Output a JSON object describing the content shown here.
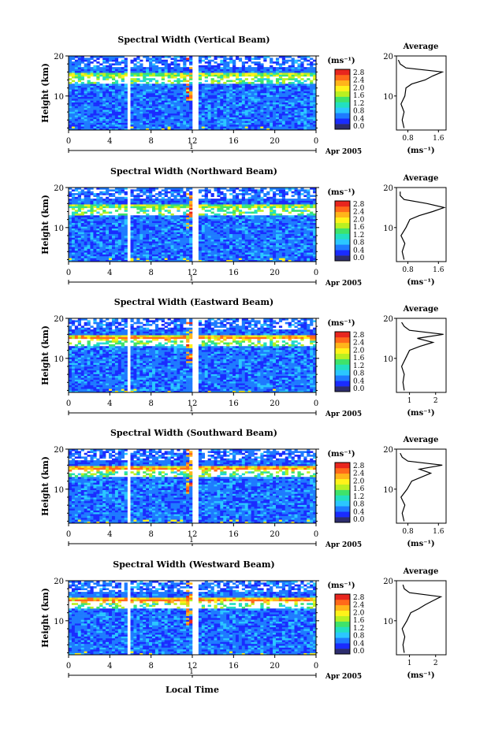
{
  "figure": {
    "x_label": "Local Time",
    "x_ticks": [
      "0",
      "4",
      "8",
      "12",
      "16",
      "20",
      "0"
    ],
    "date_marker": "1",
    "date_label": "Apr 2005",
    "y_label": "Height (km)",
    "y_ticks": [
      "20",
      "10"
    ],
    "unit_label": "(ms⁻¹)",
    "colorbar_ticks": [
      "2.8",
      "2.4",
      "2.0",
      "1.6",
      "1.2",
      "0.8",
      "0.4",
      "0.0"
    ],
    "colorbar_colors": [
      "#2d2d6e",
      "#1a2cff",
      "#1e7bff",
      "#2bc7ff",
      "#22e0c0",
      "#3fe36a",
      "#b9f021",
      "#fff21a",
      "#ffb51a",
      "#ff6a1a",
      "#e8261e"
    ],
    "profile_title": "Average",
    "profile_unit": "(ms⁻¹)"
  },
  "chart_data": [
    {
      "type": "heatmap",
      "title": "Spectral Width (Vertical Beam)",
      "xlabel": "Local Time",
      "ylabel": "Height (km)",
      "xlim": [
        0,
        24
      ],
      "ylim": [
        1.5,
        20
      ],
      "zlim": [
        0.0,
        2.8
      ],
      "data_gaps_hours": [
        [
          5.8,
          6.0
        ],
        [
          12.0,
          12.6
        ]
      ],
      "profile": {
        "xticks": [
          "0.8",
          "1.6"
        ],
        "xlim": [
          0.5,
          1.8
        ],
        "heights": [
          2,
          4,
          6,
          8,
          10,
          12,
          13,
          14,
          15,
          16,
          17,
          18,
          19
        ],
        "values": [
          0.7,
          0.65,
          0.7,
          0.62,
          0.72,
          0.75,
          0.9,
          1.25,
          1.45,
          1.7,
          0.75,
          0.6,
          0.55
        ]
      }
    },
    {
      "type": "heatmap",
      "title": "Spectral Width (Northward Beam)",
      "xlabel": "Local Time",
      "ylabel": "Height (km)",
      "xlim": [
        0,
        24
      ],
      "ylim": [
        1.5,
        20
      ],
      "zlim": [
        0.0,
        2.8
      ],
      "data_gaps_hours": [
        [
          5.8,
          6.0
        ],
        [
          12.0,
          12.6
        ]
      ],
      "profile": {
        "xticks": [
          "0.8",
          "1.6"
        ],
        "xlim": [
          0.5,
          1.8
        ],
        "heights": [
          2,
          4,
          6,
          8,
          10,
          12,
          13,
          14,
          15,
          16,
          17,
          18,
          19
        ],
        "values": [
          0.7,
          0.65,
          0.72,
          0.62,
          0.75,
          0.85,
          1.1,
          1.45,
          1.75,
          1.3,
          0.7,
          0.6,
          0.6
        ]
      }
    },
    {
      "type": "heatmap",
      "title": "Spectral Width (Eastward Beam)",
      "xlabel": "Local Time",
      "ylabel": "Height (km)",
      "xlim": [
        0,
        24
      ],
      "ylim": [
        1.5,
        20
      ],
      "zlim": [
        0.0,
        2.8
      ],
      "data_gaps_hours": [
        [
          5.8,
          6.0
        ],
        [
          12.0,
          12.6
        ]
      ],
      "profile": {
        "xticks": [
          "1",
          "2"
        ],
        "xlim": [
          0.5,
          2.4
        ],
        "heights": [
          2,
          4,
          6,
          8,
          10,
          12,
          13,
          14,
          15,
          16,
          17,
          18,
          19
        ],
        "values": [
          0.8,
          0.75,
          0.8,
          0.7,
          0.85,
          1.0,
          1.4,
          1.9,
          1.3,
          2.3,
          1.0,
          0.8,
          0.7
        ]
      }
    },
    {
      "type": "heatmap",
      "title": "Spectral Width (Southward Beam)",
      "xlabel": "Local Time",
      "ylabel": "Height (km)",
      "xlim": [
        0,
        24
      ],
      "ylim": [
        1.5,
        20
      ],
      "zlim": [
        0.0,
        2.8
      ],
      "data_gaps_hours": [
        [
          5.8,
          6.0
        ],
        [
          12.0,
          12.6
        ]
      ],
      "profile": {
        "xticks": [
          "0.8",
          "1.6"
        ],
        "xlim": [
          0.5,
          1.8
        ],
        "heights": [
          2,
          4,
          6,
          8,
          10,
          12,
          13,
          14,
          15,
          16,
          17,
          18,
          19
        ],
        "values": [
          0.7,
          0.65,
          0.72,
          0.62,
          0.78,
          0.9,
          1.15,
          1.4,
          1.1,
          1.7,
          0.8,
          0.65,
          0.6
        ]
      }
    },
    {
      "type": "heatmap",
      "title": "Spectral Width (Westward Beam)",
      "xlabel": "Local Time",
      "ylabel": "Height (km)",
      "xlim": [
        0,
        24
      ],
      "ylim": [
        1.5,
        20
      ],
      "zlim": [
        0.0,
        2.8
      ],
      "data_gaps_hours": [
        [
          5.8,
          6.0
        ],
        [
          12.0,
          12.6
        ]
      ],
      "profile": {
        "xticks": [
          "1",
          "2"
        ],
        "xlim": [
          0.5,
          2.4
        ],
        "heights": [
          2,
          4,
          6,
          8,
          10,
          12,
          13,
          14,
          15,
          16,
          17,
          18,
          19
        ],
        "values": [
          0.8,
          0.75,
          0.82,
          0.72,
          0.9,
          1.05,
          1.35,
          1.6,
          1.9,
          2.2,
          1.0,
          0.8,
          0.75
        ]
      }
    }
  ]
}
